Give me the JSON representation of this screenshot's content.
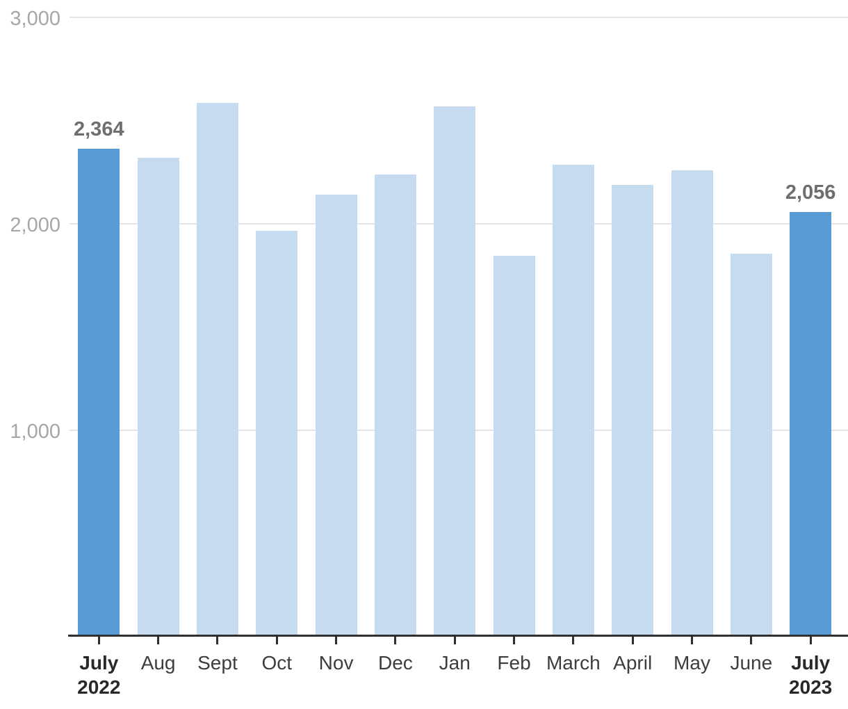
{
  "chart_data": {
    "type": "bar",
    "title": "",
    "xlabel": "",
    "ylabel": "",
    "ylim": [
      0,
      3000
    ],
    "grid": true,
    "legend": null,
    "categories": [
      {
        "label": "July",
        "sublabel": "2022",
        "bold": true
      },
      {
        "label": "Aug"
      },
      {
        "label": "Sept"
      },
      {
        "label": "Oct"
      },
      {
        "label": "Nov"
      },
      {
        "label": "Dec"
      },
      {
        "label": "Jan"
      },
      {
        "label": "Feb"
      },
      {
        "label": "March"
      },
      {
        "label": "April"
      },
      {
        "label": "May"
      },
      {
        "label": "June"
      },
      {
        "label": "July",
        "sublabel": "2023",
        "bold": true
      }
    ],
    "values": [
      2364,
      2320,
      2585,
      1965,
      2140,
      2240,
      2570,
      1845,
      2285,
      2190,
      2260,
      1855,
      2056
    ],
    "highlighted_indexes": [
      0,
      12
    ],
    "annotated_values": [
      {
        "index": 0,
        "text": "2,364"
      },
      {
        "index": 12,
        "text": "2,056"
      }
    ],
    "yticks": [
      {
        "value": 1000,
        "label": "1,000"
      },
      {
        "value": 2000,
        "label": "2,000"
      },
      {
        "value": 3000,
        "label": "3,000"
      }
    ],
    "colors": {
      "bar": "#c6dbf0",
      "highlight": "#579ad6",
      "grid": "#e4e4e4",
      "axis": "#303030",
      "ytick_text": "#a6a6a6",
      "xtick_text": "#3d3d3d",
      "xtick_bold_text": "#282828",
      "value_label_text": "#6e6e6e"
    }
  }
}
